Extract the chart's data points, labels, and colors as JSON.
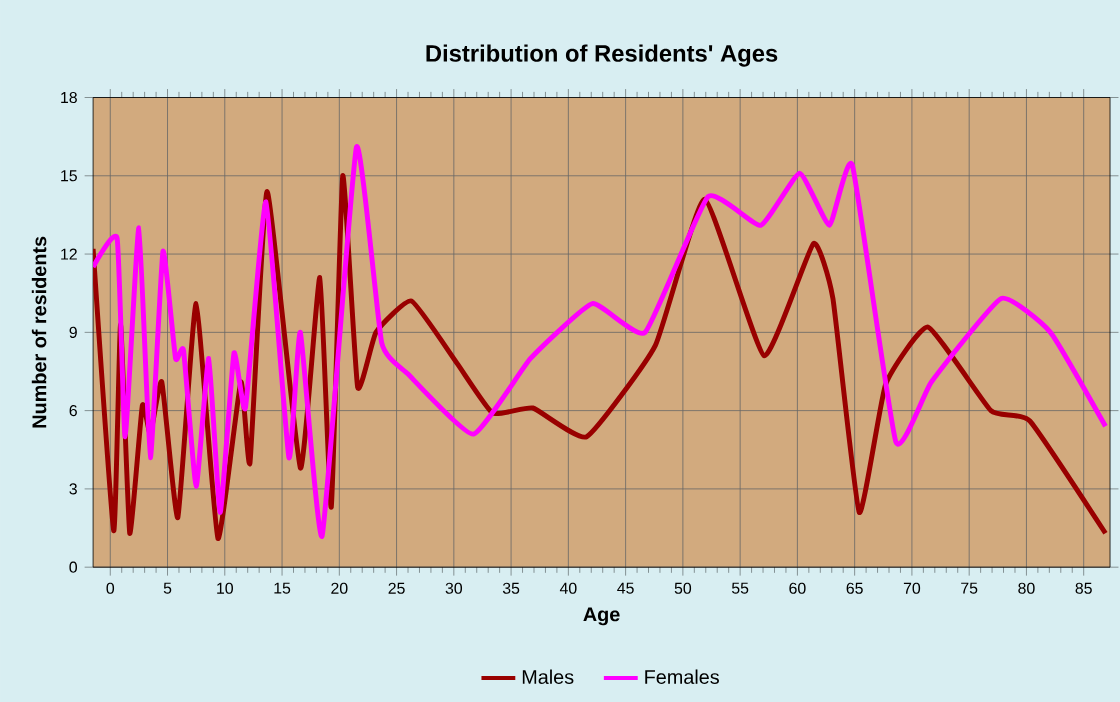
{
  "chart_data": {
    "type": "line",
    "title": "Distribution of Residents' Ages",
    "xlabel": "Age",
    "ylabel": "Number of residents",
    "xlim": [
      -1.5,
      87.3
    ],
    "ylim": [
      0,
      18
    ],
    "xticks": [
      0,
      5,
      10,
      15,
      20,
      25,
      30,
      35,
      40,
      45,
      50,
      55,
      60,
      65,
      70,
      75,
      80,
      85
    ],
    "yticks": [
      0,
      3,
      6,
      9,
      12,
      15,
      18
    ],
    "grid": true,
    "legend": "bottom",
    "marker": "none",
    "line_style": "solid",
    "series": [
      {
        "name": "Males",
        "color": "#990000",
        "x": [
          -1.5,
          0.3,
          0.9,
          1.7,
          2.8,
          3.5,
          4.5,
          5.9,
          7.5,
          9.4,
          11.4,
          12.2,
          13.7,
          16.6,
          18.3,
          19.3,
          20.3,
          21.6,
          23.2,
          26.3,
          30.3,
          33.4,
          36.9,
          41.6,
          47.6,
          51.9,
          57.1,
          61.4,
          63.1,
          65.4,
          67.7,
          71.4,
          76.9,
          80.3,
          86.9
        ],
        "values": [
          12.2,
          1.4,
          9.3,
          1.3,
          6.2,
          5.1,
          7.1,
          1.9,
          10.1,
          1.1,
          7.1,
          4.0,
          14.4,
          3.8,
          11.1,
          2.3,
          15.0,
          6.9,
          9.0,
          10.2,
          7.8,
          5.9,
          6.1,
          5.0,
          8.5,
          14.1,
          8.1,
          12.4,
          10.3,
          2.1,
          7.0,
          9.2,
          6.0,
          5.6,
          1.3
        ]
      },
      {
        "name": "Females",
        "color": "#ff00ff",
        "x": [
          -1.5,
          0.6,
          1.3,
          2.5,
          3.5,
          4.6,
          5.7,
          6.4,
          7.5,
          8.6,
          9.6,
          10.8,
          11.8,
          13.6,
          15.6,
          16.6,
          18.5,
          21.5,
          23.7,
          26.0,
          31.7,
          36.7,
          42.1,
          46.7,
          52.2,
          56.8,
          60.2,
          62.8,
          64.8,
          68.6,
          71.7,
          77.8,
          82.1,
          86.9
        ],
        "values": [
          11.5,
          12.6,
          5.0,
          13.0,
          4.2,
          12.1,
          8.0,
          8.3,
          3.1,
          8.0,
          2.1,
          8.2,
          6.1,
          14.0,
          4.2,
          9.0,
          1.2,
          16.1,
          8.6,
          7.4,
          5.1,
          8.0,
          10.1,
          9.0,
          14.2,
          13.1,
          15.1,
          13.1,
          15.4,
          4.8,
          7.1,
          10.3,
          9.0,
          5.4
        ]
      }
    ]
  }
}
